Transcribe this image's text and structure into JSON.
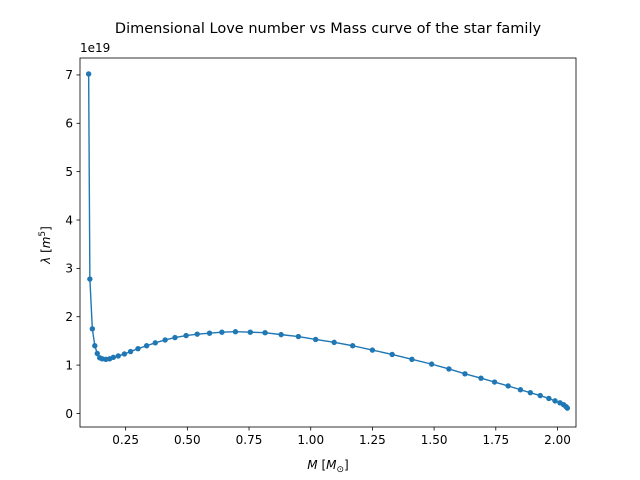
{
  "chart_data": {
    "type": "line",
    "title": "Dimensional Love number vs Mass curve of the star family",
    "xlabel_parts": {
      "var": "M",
      "open": " [",
      "unit": "M",
      "sub": "⊙",
      "close": "]"
    },
    "ylabel_parts": {
      "var": "λ",
      "open": " [",
      "unit": "m",
      "sup": "5",
      "close": "]"
    },
    "y_offset_label": "1e19",
    "xlim": [
      0.065,
      2.075
    ],
    "ylim": [
      -0.28,
      7.35
    ],
    "xticks": [
      0.25,
      0.5,
      0.75,
      1.0,
      1.25,
      1.5,
      1.75,
      2.0
    ],
    "xtick_labels": [
      "0.25",
      "0.50",
      "0.75",
      "1.00",
      "1.25",
      "1.50",
      "1.75",
      "2.00"
    ],
    "yticks": [
      0,
      1,
      2,
      3,
      4,
      5,
      6,
      7
    ],
    "ytick_labels": [
      "0",
      "1",
      "2",
      "3",
      "4",
      "5",
      "6",
      "7"
    ],
    "series": [
      {
        "color": "#1f77b4",
        "marker": "circle",
        "x": [
          0.1,
          0.105,
          0.115,
          0.125,
          0.135,
          0.145,
          0.155,
          0.17,
          0.185,
          0.2,
          0.22,
          0.245,
          0.27,
          0.3,
          0.335,
          0.37,
          0.41,
          0.45,
          0.495,
          0.54,
          0.59,
          0.64,
          0.695,
          0.755,
          0.815,
          0.88,
          0.95,
          1.02,
          1.095,
          1.17,
          1.25,
          1.33,
          1.41,
          1.49,
          1.56,
          1.625,
          1.69,
          1.745,
          1.8,
          1.85,
          1.89,
          1.93,
          1.965,
          1.99,
          2.01,
          2.025,
          2.035,
          2.04
        ],
        "y": [
          7.02,
          2.78,
          1.75,
          1.4,
          1.24,
          1.15,
          1.13,
          1.12,
          1.13,
          1.16,
          1.19,
          1.23,
          1.28,
          1.34,
          1.4,
          1.46,
          1.52,
          1.57,
          1.61,
          1.64,
          1.66,
          1.68,
          1.69,
          1.68,
          1.67,
          1.63,
          1.59,
          1.53,
          1.47,
          1.4,
          1.31,
          1.22,
          1.12,
          1.02,
          0.92,
          0.82,
          0.73,
          0.65,
          0.57,
          0.49,
          0.43,
          0.37,
          0.31,
          0.26,
          0.22,
          0.18,
          0.14,
          0.11
        ]
      }
    ]
  }
}
